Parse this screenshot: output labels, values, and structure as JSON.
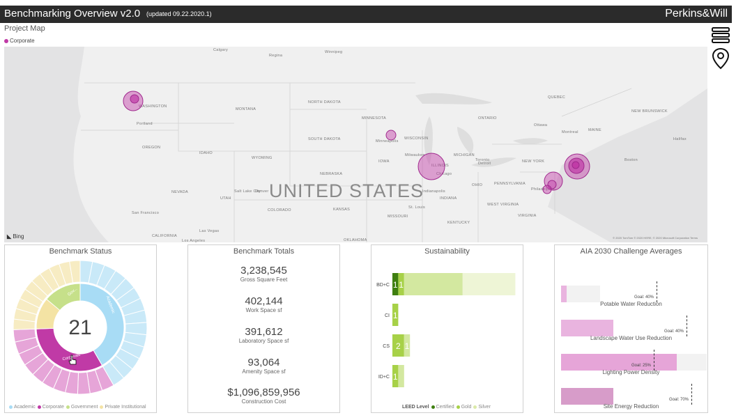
{
  "header": {
    "title": "Benchmarking Overview v2.0",
    "updated": "(updated 09.22.2020.1)",
    "brand": "Perkins&Will"
  },
  "map": {
    "section_title": "Project Map",
    "legend_label": "Corporate",
    "country_label": "UNITED STATES",
    "region_labels": [
      "Calgary",
      "WASHINGTON",
      "Portland",
      "MONTANA",
      "NORTH DAKOTA",
      "MINNESOTA",
      "SOUTH DAKOTA",
      "OREGON",
      "IDAHO",
      "WYOMING",
      "NEBRASKA",
      "IOWA",
      "WISCONSIN",
      "MICHIGAN",
      "NEVADA",
      "UTAH",
      "COLORADO",
      "KANSAS",
      "MISSOURI",
      "CALIFORNIA",
      "ILLINOIS",
      "INDIANA",
      "OHIO",
      "PENNSYLVANIA",
      "NEW YORK",
      "MAINE",
      "KENTUCKY",
      "WEST VIRGINIA",
      "VIRGINIA",
      "OKLAHOMA",
      "San Francisco",
      "Las Vegas",
      "Los Angeles",
      "Ottawa",
      "Toronto",
      "Montreal",
      "Chicago",
      "Detroit",
      "Philadelphia",
      "Boston",
      "Winnipeg",
      "ONTARIO",
      "QUEBEC",
      "Minneapolis",
      "Milwaukee",
      "Indianapolis",
      "Denver",
      "Salt Lake City",
      "St. Louis",
      "Regina",
      "NEW BRUNSWICK",
      "Halifax"
    ],
    "attribution": "Bing",
    "copyright": "© 2020 TomTom © 2020 HERE, © 2020 Microsoft Corporation  Terms",
    "icons": [
      "layers-icon",
      "map-pin-icon"
    ]
  },
  "status": {
    "title": "Benchmark Status",
    "center_value": "21",
    "segment_labels": [
      "Academic",
      "Corporate",
      "Gov..."
    ],
    "legend": [
      {
        "label": "Academic",
        "color": "#a8dcf5"
      },
      {
        "label": "Corporate",
        "color": "#c03aa6"
      },
      {
        "label": "Government",
        "color": "#c6e08a"
      },
      {
        "label": "Private Institutional",
        "color": "#f4e3a4"
      }
    ]
  },
  "totals": {
    "title": "Benchmark Totals",
    "items": [
      {
        "value": "3,238,545",
        "label": "Gross Square Feet"
      },
      {
        "value": "402,144",
        "label": "Work Space sf"
      },
      {
        "value": "391,612",
        "label": "Laboratory Space sf"
      },
      {
        "value": "93,064",
        "label": "Amenity Space sf"
      },
      {
        "value": "$1,096,859,956",
        "label": "Construction Cost"
      }
    ]
  },
  "sustainability": {
    "title": "Sustainability",
    "legend_title": "LEED Level",
    "legend": [
      {
        "label": "Certified",
        "color": "#3f7f10"
      },
      {
        "label": "Gold",
        "color": "#a7d148"
      },
      {
        "label": "Silver",
        "color": "#dbeaa8"
      }
    ],
    "rows": [
      {
        "label": "BD+C",
        "segments": [
          {
            "v": 1,
            "text": "1"
          },
          {
            "v": 1,
            "text": "1"
          },
          {
            "v": 10,
            "text": ""
          },
          {
            "v": 9,
            "text": ""
          }
        ]
      },
      {
        "label": "CI",
        "segments": [
          {
            "v": 0,
            "text": ""
          },
          {
            "v": 1,
            "text": "1"
          },
          {
            "v": 0,
            "text": ""
          },
          {
            "v": 0,
            "text": ""
          }
        ]
      },
      {
        "label": "CS",
        "segments": [
          {
            "v": 0,
            "text": ""
          },
          {
            "v": 2,
            "text": "2"
          },
          {
            "v": 1,
            "text": "1"
          },
          {
            "v": 0,
            "text": ""
          }
        ]
      },
      {
        "label": "ID+C",
        "segments": [
          {
            "v": 0,
            "text": ""
          },
          {
            "v": 1,
            "text": "1"
          },
          {
            "v": 1,
            "text": ""
          },
          {
            "v": 0,
            "text": ""
          }
        ]
      }
    ]
  },
  "aia": {
    "title": "AIA 2030 Challenge Averages",
    "items": [
      {
        "label": "Potable Water Reduction",
        "goal_text": "Goal: 40%",
        "value": 0.01,
        "goal": 0.4
      },
      {
        "label": "Landscape Water Use Reduction",
        "goal_text": "Goal: 40%",
        "value": 0.1,
        "goal": 0.4
      },
      {
        "label": "Lighting Power Density",
        "goal_text": "Goal: 25%",
        "value": 0.22,
        "goal": 0.25
      },
      {
        "label": "Site Energy Reduction",
        "goal_text": "Goal: 70%",
        "value": 0.1,
        "goal": 0.7
      }
    ]
  }
}
